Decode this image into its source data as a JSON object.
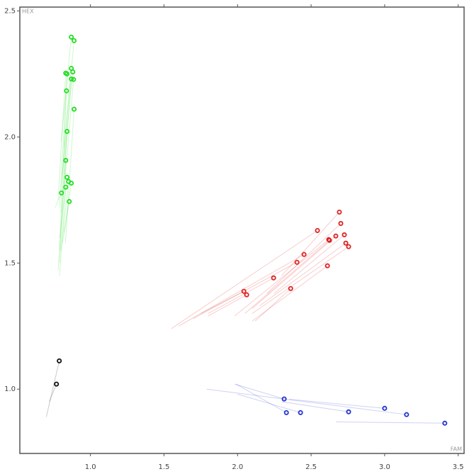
{
  "chart_data": {
    "type": "scatter",
    "x_label": "FAM",
    "y_label": "HEX",
    "xlim": [
      0.52,
      3.54
    ],
    "ylim": [
      0.745,
      2.515
    ],
    "xticks": [
      {
        "value": 1.0,
        "label": "1.0"
      },
      {
        "value": 1.5,
        "label": "1.5"
      },
      {
        "value": 2.0,
        "label": "2.0"
      },
      {
        "value": 2.5,
        "label": "2.5"
      },
      {
        "value": 3.0,
        "label": "3.0"
      },
      {
        "value": 3.5,
        "label": "3.5"
      }
    ],
    "yticks": [
      {
        "value": 1.0,
        "label": "1.0"
      },
      {
        "value": 1.5,
        "label": "1.5"
      },
      {
        "value": 2.0,
        "label": "2.0"
      },
      {
        "value": 2.5,
        "label": "2.5"
      }
    ],
    "series": [
      {
        "color": "#22dd22",
        "x": [
          0.87,
          0.889,
          0.87,
          0.832,
          0.841,
          0.88,
          0.87,
          0.885,
          0.837,
          0.889,
          0.841,
          0.832,
          0.841,
          0.851,
          0.87,
          0.832,
          0.803,
          0.856
        ],
        "y": [
          2.396,
          2.382,
          2.272,
          2.253,
          2.25,
          2.258,
          2.23,
          2.228,
          2.183,
          2.11,
          2.022,
          1.907,
          1.84,
          1.823,
          1.817,
          1.801,
          1.778,
          1.744
        ],
        "trail_x": [
          0.8,
          0.82,
          0.8,
          0.78,
          0.79,
          0.81,
          0.8,
          0.82,
          0.79,
          0.83,
          0.79,
          0.78,
          0.79,
          0.8,
          0.82,
          0.79,
          0.76,
          0.81
        ],
        "trail_y": [
          1.98,
          1.96,
          1.8,
          1.75,
          1.72,
          1.85,
          1.7,
          1.78,
          1.55,
          1.58,
          1.5,
          1.47,
          1.6,
          1.55,
          1.62,
          1.45,
          1.72,
          1.58
        ]
      },
      {
        "color": "#dd2222",
        "x": [
          2.692,
          2.702,
          2.543,
          2.668,
          2.726,
          2.62,
          2.625,
          2.736,
          2.755,
          2.452,
          2.404,
          2.611,
          2.245,
          2.361,
          2.043,
          2.062
        ],
        "y": [
          1.702,
          1.657,
          1.629,
          1.607,
          1.612,
          1.593,
          1.59,
          1.579,
          1.565,
          1.534,
          1.503,
          1.489,
          1.441,
          1.399,
          1.388,
          1.374
        ],
        "trail_x": [
          2.3,
          2.2,
          1.55,
          2.1,
          2.25,
          1.98,
          2.05,
          2.15,
          2.1,
          1.6,
          1.7,
          2.1,
          1.8,
          2.12,
          1.75,
          1.8
        ],
        "trail_y": [
          1.45,
          1.38,
          1.24,
          1.32,
          1.38,
          1.29,
          1.3,
          1.33,
          1.3,
          1.25,
          1.28,
          1.27,
          1.3,
          1.27,
          1.3,
          1.29
        ]
      },
      {
        "color": "#2233cc",
        "x": [
          2.317,
          2.332,
          2.428,
          2.755,
          3.0,
          3.149,
          3.409
        ],
        "y": [
          0.961,
          0.907,
          0.907,
          0.91,
          0.924,
          0.899,
          0.865
        ],
        "trail_x": [
          1.98,
          1.99,
          2.0,
          2.3,
          2.35,
          1.79,
          2.67
        ],
        "trail_y": [
          1.02,
          1.02,
          0.98,
          0.95,
          0.96,
          1.0,
          0.87
        ]
      },
      {
        "color": "#111111",
        "x": [
          0.788,
          0.769
        ],
        "y": [
          1.112,
          1.02
        ],
        "trail_x": [
          0.7,
          0.72
        ],
        "trail_y": [
          0.89,
          0.95
        ]
      }
    ]
  }
}
